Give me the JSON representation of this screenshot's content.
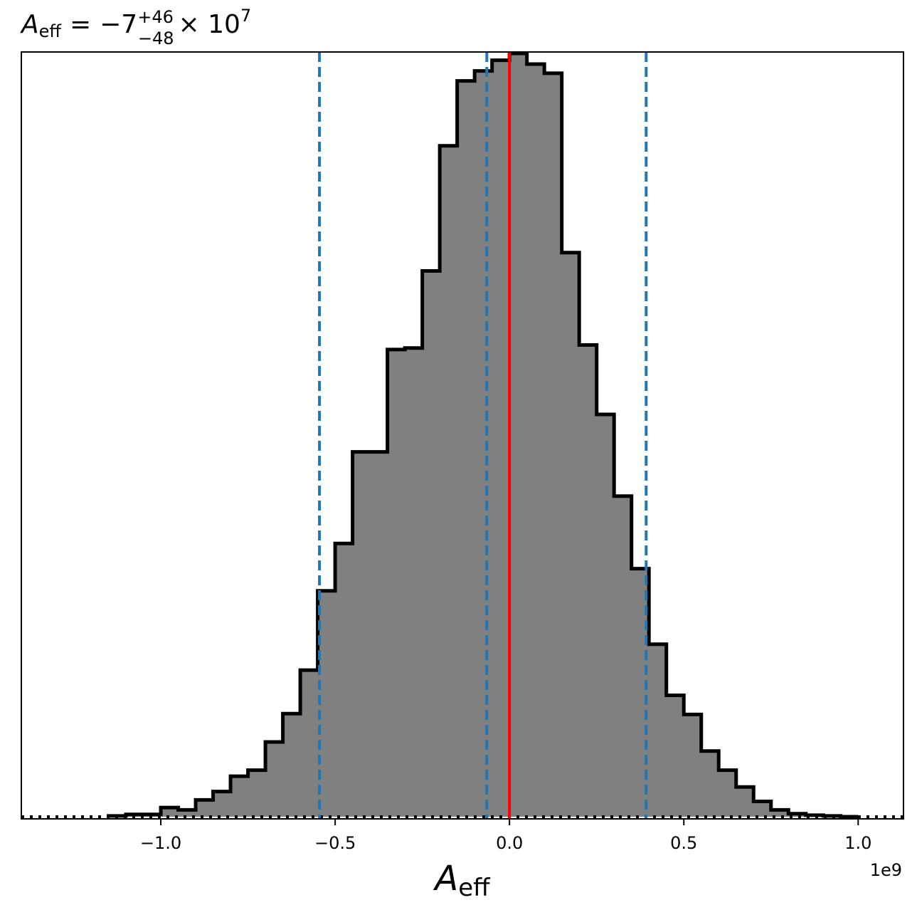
{
  "chart_data": {
    "type": "histogram",
    "title": {
      "symbol": "A",
      "symbol_subscript": "eff",
      "equals": "=",
      "central": "−7",
      "upper_err": "+46",
      "lower_err": "−48",
      "times": "× 10",
      "exponent": "7"
    },
    "xlabel": {
      "symbol": "A",
      "subscript": "eff"
    },
    "x_offset_label": "1e9",
    "xlim": [
      -1.4,
      1.13
    ],
    "ylim": [
      0,
      1.0
    ],
    "xticks": [
      {
        "value": -1.0,
        "label": "−1.0"
      },
      {
        "value": -0.5,
        "label": "−0.5"
      },
      {
        "value": 0.0,
        "label": "0.0"
      },
      {
        "value": 0.5,
        "label": "0.5"
      },
      {
        "value": 1.0,
        "label": "1.0"
      }
    ],
    "bin_edges": [
      -1.15,
      -1.1,
      -1.05,
      -1.0,
      -0.95,
      -0.9,
      -0.85,
      -0.8,
      -0.75,
      -0.7,
      -0.65,
      -0.6,
      -0.55,
      -0.5,
      -0.45,
      -0.4,
      -0.35,
      -0.3,
      -0.25,
      -0.2,
      -0.15,
      -0.1,
      -0.05,
      0.0,
      0.05,
      0.1,
      0.15,
      0.2,
      0.25,
      0.3,
      0.35,
      0.4,
      0.45,
      0.5,
      0.55,
      0.6,
      0.65,
      0.7,
      0.75,
      0.8,
      0.85,
      0.9,
      0.95,
      1.0
    ],
    "bin_heights": [
      0.001,
      0.003,
      0.003,
      0.012,
      0.009,
      0.022,
      0.033,
      0.053,
      0.061,
      0.098,
      0.135,
      0.192,
      0.296,
      0.358,
      0.478,
      0.478,
      0.612,
      0.614,
      0.715,
      0.879,
      0.964,
      0.977,
      0.991,
      1.0,
      0.986,
      0.974,
      0.739,
      0.618,
      0.527,
      0.42,
      0.325,
      0.226,
      0.159,
      0.134,
      0.086,
      0.061,
      0.039,
      0.02,
      0.009,
      0.004,
      0.002,
      0.001,
      0.0
    ],
    "bin_heights_note": "",
    "median": -0.065,
    "lower_quantile": -0.545,
    "upper_quantile": 0.392,
    "truth": 0.0,
    "colors": {
      "fill": "#808080",
      "edge": "#000000",
      "quantile_lines": "#1f77b4",
      "truth_line": "#ff0000"
    }
  }
}
